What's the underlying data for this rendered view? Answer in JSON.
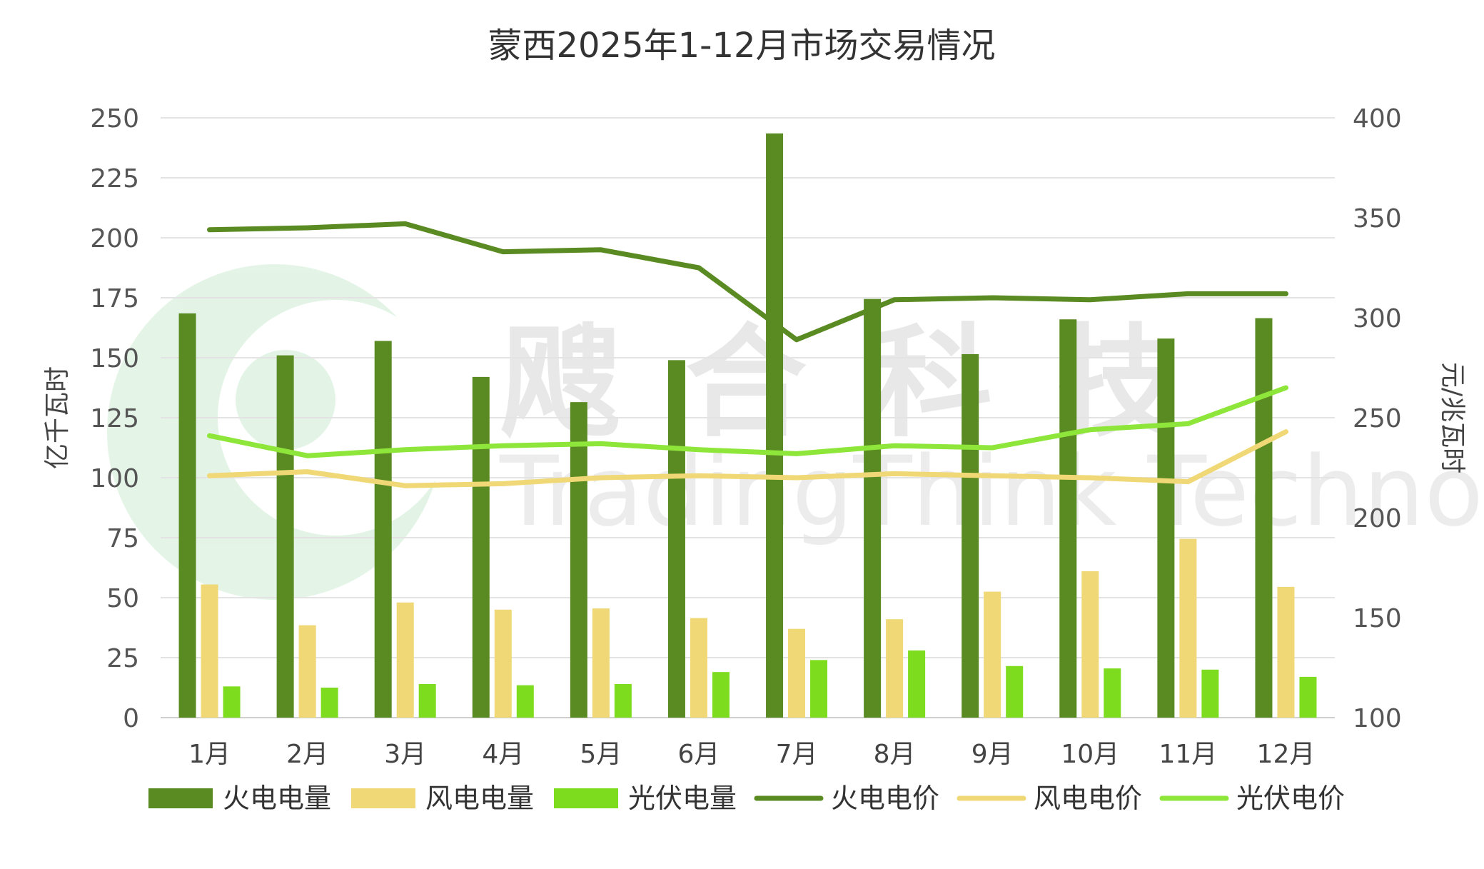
{
  "chart_data": {
    "type": "bar",
    "title": "蒙西2025年1-12月市场交易情况",
    "categories": [
      "1月",
      "2月",
      "3月",
      "4月",
      "5月",
      "6月",
      "7月",
      "8月",
      "9月",
      "10月",
      "11月",
      "12月"
    ],
    "y_left": {
      "label": "亿千瓦时",
      "range": [
        0,
        250
      ],
      "ticks": [
        0,
        25,
        50,
        75,
        100,
        125,
        150,
        175,
        200,
        225,
        250
      ]
    },
    "y_right": {
      "label": "元/兆瓦时",
      "range": [
        100,
        400
      ],
      "ticks": [
        100,
        150,
        200,
        250,
        300,
        350,
        400
      ]
    },
    "grid": true,
    "legend_position": "bottom",
    "bar_series": [
      {
        "name": "火电电量",
        "color": "#5a8a22",
        "values": [
          168.5,
          151,
          157,
          142,
          131.5,
          149,
          243.5,
          174.5,
          151.5,
          166,
          158,
          166.5
        ]
      },
      {
        "name": "风电电量",
        "color": "#efd875",
        "values": [
          55.5,
          38.5,
          48,
          45,
          45.5,
          41.5,
          37,
          41,
          52.5,
          61,
          74.5,
          54.5
        ]
      },
      {
        "name": "光伏电量",
        "color": "#7ddc1e",
        "values": [
          13,
          12.5,
          14,
          13.5,
          14,
          19,
          24,
          28,
          21.5,
          20.5,
          20,
          17
        ]
      }
    ],
    "line_series": [
      {
        "name": "火电电价",
        "color": "#5a8a22",
        "values": [
          344,
          345,
          347,
          333,
          334,
          325,
          289,
          309,
          310,
          309,
          312,
          312
        ]
      },
      {
        "name": "风电电价",
        "color": "#efd875",
        "values": [
          221,
          223,
          216,
          217,
          220,
          221,
          220,
          222,
          221,
          220,
          218,
          243
        ]
      },
      {
        "name": "光伏电价",
        "color": "#8fe63a",
        "values": [
          241,
          231,
          234,
          236,
          237,
          234,
          232,
          236,
          235,
          244,
          247,
          265
        ]
      }
    ]
  },
  "watermark": {
    "text_cn": "飕合科技",
    "text_en": "TradingThink Technology"
  }
}
